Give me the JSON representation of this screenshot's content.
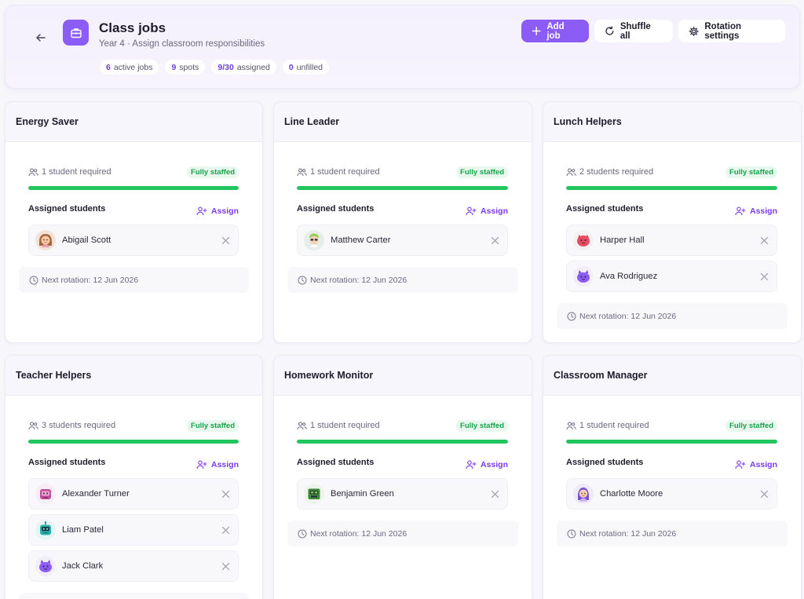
{
  "header": {
    "title": "Class jobs",
    "subtitle": "Year 4 · Assign classroom responsibilities",
    "stats": [
      {
        "value": "6",
        "label": "active jobs"
      },
      {
        "value": "9",
        "label": "spots"
      },
      {
        "value": "9/30",
        "label": "assigned"
      },
      {
        "value": "0",
        "label": "unfilled"
      }
    ],
    "actions": {
      "add_job": "Add job",
      "shuffle_all": "Shuffle all",
      "rotation_settings": "Rotation settings"
    }
  },
  "labels": {
    "assigned_students": "Assigned students",
    "assign": "Assign",
    "fully_staffed": "Fully staffed"
  },
  "jobs": [
    {
      "title": "Energy Saver",
      "required": "1 student required",
      "fill": 1.0,
      "next_rotation": "Next rotation: 12 Jun 2026",
      "students": [
        {
          "name": "Abigail Scott",
          "avatar": "girl-brown-hair"
        }
      ]
    },
    {
      "title": "Line Leader",
      "required": "1 student required",
      "fill": 1.0,
      "next_rotation": "Next rotation: 12 Jun 2026",
      "students": [
        {
          "name": "Matthew Carter",
          "avatar": "boy-sunglasses"
        }
      ]
    },
    {
      "title": "Lunch Helpers",
      "required": "2 students required",
      "fill": 1.0,
      "next_rotation": "Next rotation: 12 Jun 2026",
      "students": [
        {
          "name": "Harper Hall",
          "avatar": "red-monster"
        },
        {
          "name": "Ava Rodriguez",
          "avatar": "purple-monster"
        }
      ]
    },
    {
      "title": "Teacher Helpers",
      "required": "3 students required",
      "fill": 1.0,
      "next_rotation": "Next rotation: 12 Jun 2026",
      "students": [
        {
          "name": "Alexander Turner",
          "avatar": "pink-robot"
        },
        {
          "name": "Liam Patel",
          "avatar": "teal-robot"
        },
        {
          "name": "Jack Clark",
          "avatar": "purple-monster"
        }
      ]
    },
    {
      "title": "Homework Monitor",
      "required": "1 student required",
      "fill": 1.0,
      "next_rotation": "Next rotation: 12 Jun 2026",
      "students": [
        {
          "name": "Benjamin Green",
          "avatar": "green-robot"
        }
      ]
    },
    {
      "title": "Classroom Manager",
      "required": "1 student required",
      "fill": 1.0,
      "next_rotation": "Next rotation: 12 Jun 2026",
      "students": [
        {
          "name": "Charlotte Moore",
          "avatar": "girl-purple-hair"
        }
      ]
    }
  ],
  "colors": {
    "accent": "#8b5cf6",
    "accent_text": "#7c3aed",
    "success": "#22c55e",
    "success_text": "#16a34a"
  }
}
